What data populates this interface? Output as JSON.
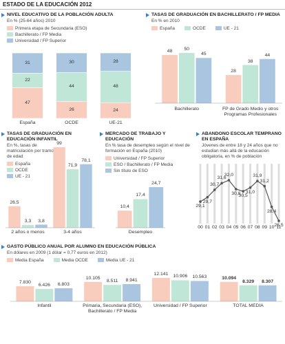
{
  "page_title": "ESTADO DE LA EDUCACIÓN 2012",
  "chart_data": [
    {
      "type": "stacked_bar",
      "title": "NIVEL EDUCATIVO DE LA POBLACIÓN ADULTA",
      "subtitle": "En % (25-64 años) 2010",
      "categories": [
        "España",
        "OCDE",
        "UE-21"
      ],
      "series": [
        {
          "name": "Primera etapa de Secundaria (ESO)",
          "color": "#f9cdbd",
          "values": [
            47,
            26,
            24
          ]
        },
        {
          "name": "Bachillerato / FP Media",
          "color": "#bfe6d6",
          "values": [
            22,
            44,
            48
          ]
        },
        {
          "name": "Universidad / FP Superior",
          "color": "#a9c5e0",
          "values": [
            31,
            30,
            28
          ]
        }
      ]
    },
    {
      "type": "bar",
      "title": "TASAS DE GRADUACIÓN EN BACHILLERATO / FP MEDIA",
      "subtitle": "En % en 2010",
      "categories": [
        "Bachillerato",
        "FP de Grado Medio y otros Programas Profesionales"
      ],
      "series": [
        {
          "name": "España",
          "color": "#f9cdbd",
          "values": [
            48,
            28
          ]
        },
        {
          "name": "OCDE",
          "color": "#bfe6d6",
          "values": [
            50,
            38
          ]
        },
        {
          "name": "UE - 21",
          "color": "#a9c5e0",
          "values": [
            45,
            44
          ]
        }
      ]
    },
    {
      "type": "bar",
      "title": "TASAS DE GRADUACIÓN EN EDUCACIÓN INFANTIL",
      "subtitle": "En %, tasas de matriculación por tramos de edad",
      "categories": [
        "2 años o menos",
        "3-4 años"
      ],
      "series": [
        {
          "name": "España",
          "color": "#f9cdbd",
          "values": [
            26.5,
            99
          ],
          "value_labels": [
            "26,5",
            "99"
          ]
        },
        {
          "name": "OCDE",
          "color": "#bfe6d6",
          "values": [
            3.3,
            71.9
          ],
          "value_labels": [
            "3,3",
            "71,9"
          ]
        },
        {
          "name": "UE - 21",
          "color": "#a9c5e0",
          "values": [
            3.8,
            78.1
          ],
          "value_labels": [
            "3,8",
            "78,1"
          ]
        }
      ]
    },
    {
      "type": "bar",
      "title": "MERCADO DE TRABAJO Y EDUCACIÓN",
      "subtitle": "En % tasa de desempleo según el nivel de formación en España (2010)",
      "categories": [
        "Desempleo"
      ],
      "series": [
        {
          "name": "Universidad / FP Superior",
          "color": "#f9cdbd",
          "values": [
            10.4
          ],
          "value_labels": [
            "10,4"
          ]
        },
        {
          "name": "ESO / Bachillerato / FP Media",
          "color": "#bfe6d6",
          "values": [
            17.4
          ],
          "value_labels": [
            "17,4"
          ]
        },
        {
          "name": "Sin título de ESO",
          "color": "#a9c5e0",
          "values": [
            24.7
          ],
          "value_labels": [
            "24,7"
          ]
        }
      ]
    },
    {
      "type": "line",
      "title": "ABANDONO ESCOLAR TEMPRANO EN ESPAÑA",
      "subtitle": "Jóvenes de entre 18 y 24 años que no estudian más allá de la educación obligatoria, en % de población",
      "categories": [
        "00",
        "01",
        "02",
        "03",
        "04",
        "05",
        "06",
        "07",
        "08",
        "09",
        "10",
        "11"
      ],
      "values": [
        29.1,
        29.7,
        30.7,
        31.6,
        32.0,
        30.8,
        30.5,
        31.0,
        31.9,
        31.2,
        28.4,
        26.5
      ],
      "value_labels": [
        "29,1",
        "29,7",
        "30,7",
        "31,6",
        "32,0",
        "30,8",
        "30,5",
        "31,0",
        "31,9",
        "31,2",
        "28,4",
        "26,5"
      ],
      "color": "#555555"
    },
    {
      "type": "bar",
      "title": "GASTO PÚBLICO ANUAL POR ALUMNO EN EDUCACIÓN PÚBLICA",
      "subtitle": "En dólares en 2009 (1 dólar = 0,77 euros en 2012)",
      "categories": [
        "Infantil",
        "Primaria, Secundaria (ESO), Bachillerato / FP Media",
        "Universidad / FP Superior",
        "TOTAL MEDIA"
      ],
      "series": [
        {
          "name": "Media España",
          "color": "#f9cdbd",
          "values": [
            7830,
            10105,
            12141,
            10094
          ],
          "value_labels": [
            "7.830",
            "10.105",
            "12.141",
            "10.094"
          ]
        },
        {
          "name": "Media OCDE",
          "color": "#bfe6d6",
          "values": [
            6426,
            8511,
            10906,
            8329
          ],
          "value_labels": [
            "6.426",
            "8.511",
            "10.906",
            "8.329"
          ]
        },
        {
          "name": "Media UE - 21",
          "color": "#a9c5e0",
          "values": [
            6803,
            8941,
            10563,
            8307
          ],
          "value_labels": [
            "6.803",
            "8.941",
            "10.563",
            "8.307"
          ]
        }
      ]
    }
  ]
}
